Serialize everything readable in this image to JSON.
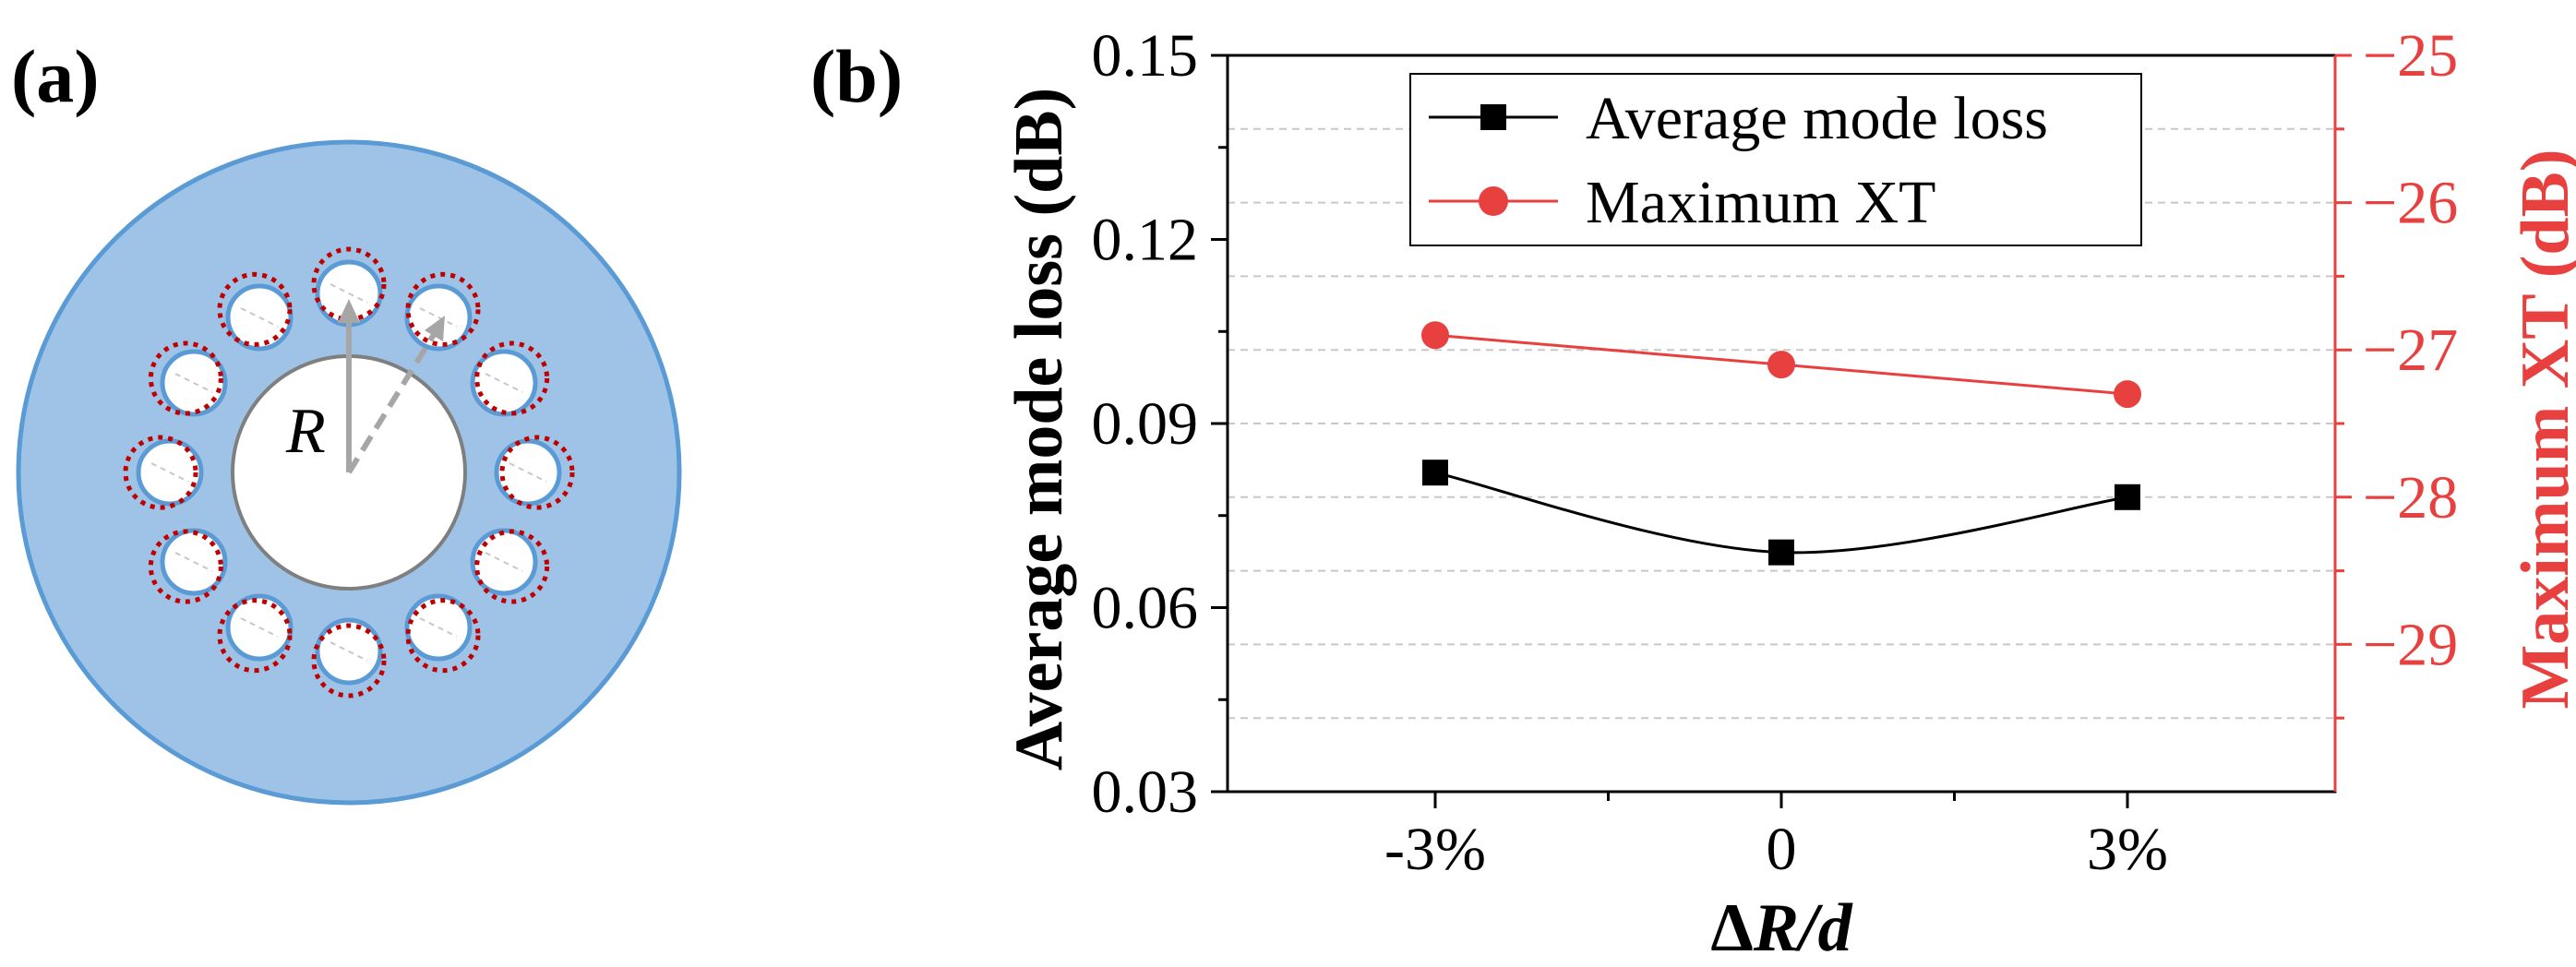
{
  "panel_a": {
    "label": "(a)",
    "radius_label": "R",
    "colors": {
      "cladding": "#9fc3e6",
      "cladding_edge": "#5b9bd5",
      "core_edge": "#7f7f7f",
      "shift": "#c00000",
      "arrow": "#a6a6a6"
    },
    "tube_count": 12
  },
  "panel_b": {
    "label": "(b)"
  },
  "chart_data": {
    "type": "line",
    "categories": [
      "-3%",
      "0",
      "3%"
    ],
    "x": [
      -3,
      0,
      3
    ],
    "xlim": [
      -4.8,
      4.8
    ],
    "xlabel_main": "Δ",
    "xlabel_vars": "R/d",
    "ylabel": "Average mode loss (dB)",
    "ylabel_right": "Maximum XT (dB)",
    "ylim": [
      0.03,
      0.15
    ],
    "yticks": [
      "0.03",
      "0.06",
      "0.09",
      "0.12",
      "0.15"
    ],
    "ylim_right": [
      -30,
      -25
    ],
    "yticks_right": [
      "−29",
      "−28",
      "−27",
      "−26",
      "−25"
    ],
    "series": [
      {
        "name": "Average mode loss",
        "axis": "left",
        "marker": "square",
        "color": "#000000",
        "values": [
          0.082,
          0.069,
          0.078
        ],
        "smooth": true
      },
      {
        "name": "Maximum XT",
        "axis": "right",
        "marker": "circle",
        "color": "#e8403f",
        "values": [
          -26.9,
          -27.1,
          -27.3
        ],
        "smooth": false
      }
    ],
    "legend_position": "top-center",
    "grid": true
  }
}
